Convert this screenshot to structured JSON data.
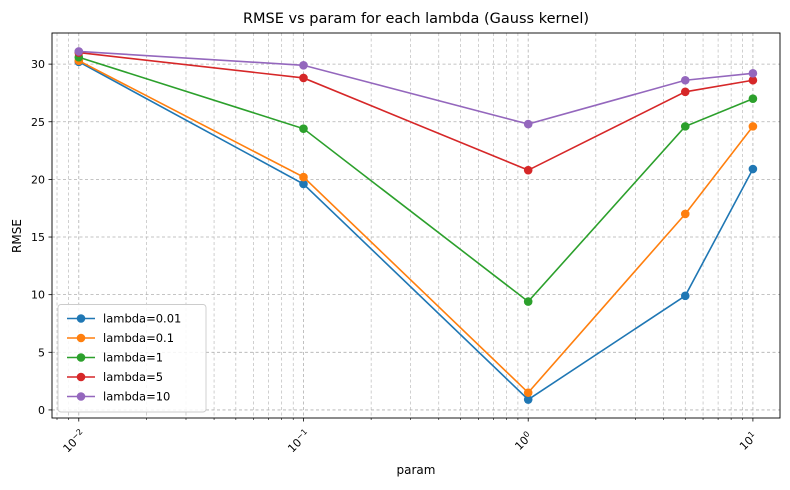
{
  "chart_data": {
    "type": "line",
    "title": "RMSE vs param for each lambda (Gauss kernel)",
    "xlabel": "param",
    "ylabel": "RMSE",
    "x_scale": "log",
    "xlim": [
      0.0076,
      13.2
    ],
    "ylim": [
      -0.7,
      32.7
    ],
    "x": [
      0.01,
      0.1,
      1,
      5,
      10
    ],
    "x_ticks": [
      {
        "value": 0.01,
        "base": "10",
        "exp": "−2"
      },
      {
        "value": 0.1,
        "base": "10",
        "exp": "−1"
      },
      {
        "value": 1,
        "base": "10",
        "exp": "0"
      },
      {
        "value": 10,
        "base": "10",
        "exp": "1"
      }
    ],
    "y_ticks": [
      0,
      5,
      10,
      15,
      20,
      25,
      30
    ],
    "grid": true,
    "legend_position": "lower-left",
    "series": [
      {
        "name": "lambda=0.01",
        "color": "#1f77b4",
        "values": [
          30.2,
          19.6,
          0.9,
          9.9,
          20.9
        ]
      },
      {
        "name": "lambda=0.1",
        "color": "#ff7f0e",
        "values": [
          30.3,
          20.2,
          1.5,
          17.0,
          24.6
        ]
      },
      {
        "name": "lambda=1",
        "color": "#2ca02c",
        "values": [
          30.6,
          24.4,
          9.4,
          24.6,
          27.0
        ]
      },
      {
        "name": "lambda=5",
        "color": "#d62728",
        "values": [
          31.0,
          28.8,
          20.8,
          27.6,
          28.6
        ]
      },
      {
        "name": "lambda=10",
        "color": "#9467bd",
        "values": [
          31.1,
          29.9,
          24.8,
          28.6,
          29.2
        ]
      }
    ]
  }
}
